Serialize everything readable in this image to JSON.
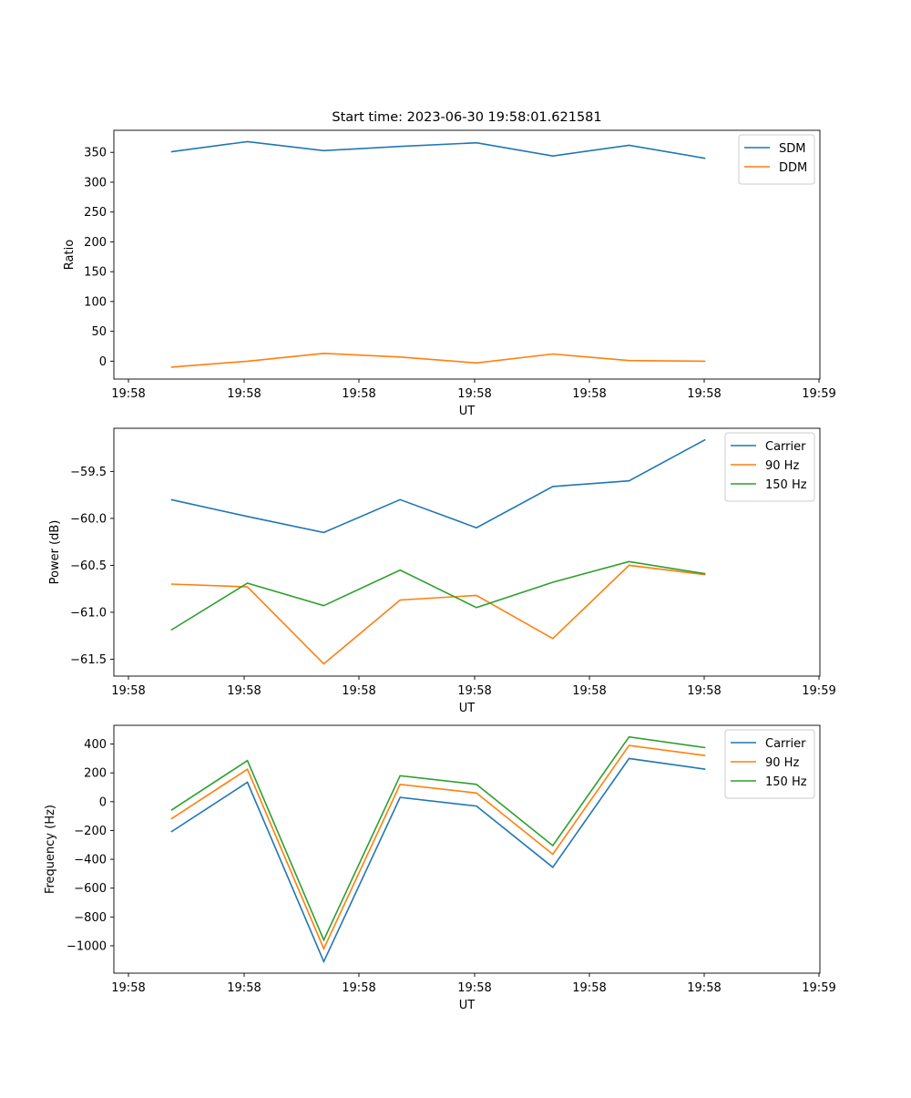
{
  "figure": {
    "title": "Start time: 2023-06-30 19:58:01.621581"
  },
  "chart_data": [
    {
      "type": "line",
      "xlabel": "UT",
      "ylabel": "Ratio",
      "x_tick_labels": [
        "19:58",
        "19:58",
        "19:58",
        "19:58",
        "19:58",
        "19:58",
        "19:59"
      ],
      "x_index": [
        0,
        1,
        2,
        3,
        4,
        5,
        6,
        7
      ],
      "xlim": [
        -0.75,
        8.5
      ],
      "ylim": [
        -30,
        387
      ],
      "y_ticks": [
        0,
        50,
        100,
        150,
        200,
        250,
        300,
        350
      ],
      "legend_position": "top-right",
      "series": [
        {
          "name": "SDM",
          "color": "#1f77b4",
          "values": [
            351,
            368,
            353,
            360,
            366,
            344,
            362,
            340
          ]
        },
        {
          "name": "DDM",
          "color": "#ff7f0e",
          "values": [
            -10,
            0,
            13,
            7,
            -3,
            12,
            1,
            0
          ]
        }
      ]
    },
    {
      "type": "line",
      "xlabel": "UT",
      "ylabel": "Power (dB)",
      "x_tick_labels": [
        "19:58",
        "19:58",
        "19:58",
        "19:58",
        "19:58",
        "19:58",
        "19:59"
      ],
      "x_index": [
        0,
        1,
        2,
        3,
        4,
        5,
        6,
        7
      ],
      "xlim": [
        -0.75,
        8.5
      ],
      "ylim": [
        -61.68,
        -59.04
      ],
      "y_ticks": [
        -61.5,
        -61.0,
        -60.5,
        -60.0,
        -59.5
      ],
      "y_tick_labels": [
        "−61.5",
        "−61.0",
        "−60.5",
        "−60.0",
        "−59.5"
      ],
      "legend_position": "top-right",
      "series": [
        {
          "name": "Carrier",
          "color": "#1f77b4",
          "values": [
            -59.8,
            -59.98,
            -60.15,
            -59.8,
            -60.1,
            -59.66,
            -59.6,
            -59.16
          ]
        },
        {
          "name": "90 Hz",
          "color": "#ff7f0e",
          "values": [
            -60.7,
            -60.73,
            -61.55,
            -60.87,
            -60.82,
            -61.28,
            -60.5,
            -60.6
          ]
        },
        {
          "name": "150 Hz",
          "color": "#2ca02c",
          "values": [
            -61.19,
            -60.69,
            -60.93,
            -60.55,
            -60.95,
            -60.68,
            -60.46,
            -60.59
          ]
        }
      ]
    },
    {
      "type": "line",
      "xlabel": "UT",
      "ylabel": "Frequency (Hz)",
      "x_tick_labels": [
        "19:58",
        "19:58",
        "19:58",
        "19:58",
        "19:58",
        "19:58",
        "19:59"
      ],
      "x_index": [
        0,
        1,
        2,
        3,
        4,
        5,
        6,
        7
      ],
      "xlim": [
        -0.75,
        8.5
      ],
      "ylim": [
        -1190,
        530
      ],
      "y_ticks": [
        -1000,
        -800,
        -600,
        -400,
        -200,
        0,
        200,
        400
      ],
      "y_tick_labels": [
        "−1000",
        "−800",
        "−600",
        "−400",
        "−200",
        "0",
        "200",
        "400"
      ],
      "legend_position": "top-right",
      "series": [
        {
          "name": "Carrier",
          "color": "#1f77b4",
          "values": [
            -210,
            135,
            -1110,
            30,
            -30,
            -455,
            300,
            225
          ]
        },
        {
          "name": "90 Hz",
          "color": "#ff7f0e",
          "values": [
            -120,
            225,
            -1020,
            120,
            60,
            -365,
            390,
            320
          ]
        },
        {
          "name": "150 Hz",
          "color": "#2ca02c",
          "values": [
            -60,
            285,
            -960,
            180,
            120,
            -305,
            450,
            375
          ]
        }
      ]
    }
  ]
}
